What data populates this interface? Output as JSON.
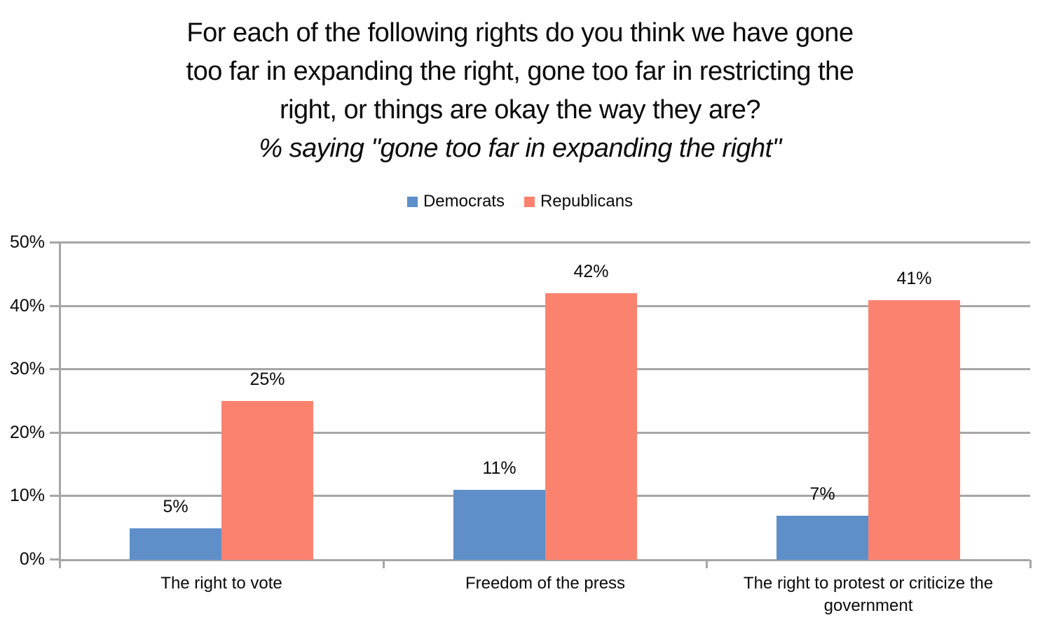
{
  "title": {
    "lines": [
      "For each of the following rights do you think we have gone",
      "too far in expanding the right, gone too far in restricting the",
      "right, or things are okay the way they are?"
    ],
    "subtitle": "% saying \"gone too far in expanding the right\""
  },
  "chart_data": {
    "type": "bar",
    "title": "For each of the following rights do you think we have gone too far in expanding the right, gone too far in restricting the right, or things are okay the way they are?",
    "subtitle": "% saying \"gone too far in expanding the right\"",
    "categories": [
      "The right to vote",
      "Freedom of the press",
      "The right to protest or criticize the government"
    ],
    "series": [
      {
        "name": "Democrats",
        "color": "#5E8FC9",
        "values": [
          5,
          11,
          7
        ],
        "labels": [
          "5%",
          "11%",
          "7%"
        ]
      },
      {
        "name": "Republicans",
        "color": "#FC8270",
        "values": [
          25,
          42,
          41
        ],
        "labels": [
          "25%",
          "42%",
          "41%"
        ]
      }
    ],
    "yticks": [
      "0%",
      "10%",
      "20%",
      "30%",
      "40%",
      "50%"
    ],
    "ylim": [
      0,
      50
    ],
    "xlabel": "",
    "ylabel": "",
    "grid": true,
    "legend_position": "top-center",
    "axis_color": "#A6A6A6",
    "text_color": "#0A0A0A",
    "background_color": "#FFFFFF"
  }
}
